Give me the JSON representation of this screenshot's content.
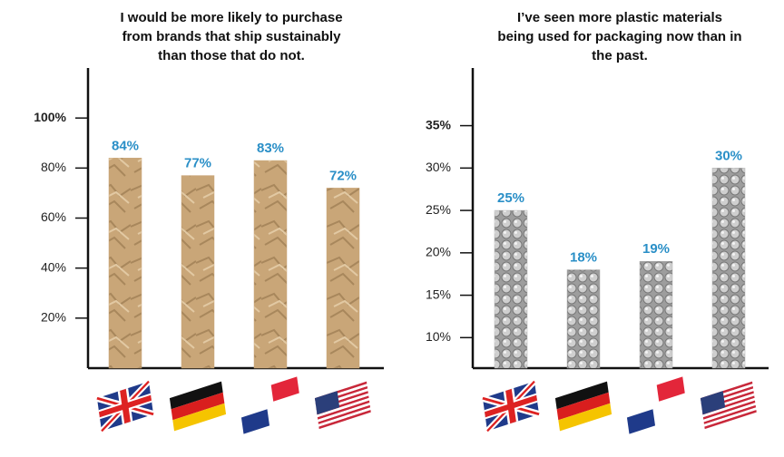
{
  "chart_data": [
    {
      "type": "bar",
      "title": [
        "I would be more likely to purchase",
        "from brands that ship sustainably",
        "than those that do not."
      ],
      "categories": [
        null,
        null,
        null,
        null
      ],
      "values": [
        84,
        77,
        83,
        72
      ],
      "value_labels": [
        "84%",
        "77%",
        "83%",
        "72%"
      ],
      "color": "#c9a678",
      "ylim": [
        0,
        120
      ],
      "yticks": [
        {
          "value": 20,
          "label": "20%"
        },
        {
          "value": 40,
          "label": "40%"
        },
        {
          "value": 60,
          "label": "60%"
        },
        {
          "value": 80,
          "label": "80%"
        },
        {
          "value": 100,
          "label": "100%"
        }
      ]
    },
    {
      "type": "bar",
      "title": [
        "I’ve seen more plastic materials",
        "being used for packaging now than in",
        "the past."
      ],
      "categories": [
        null,
        null,
        null,
        null
      ],
      "values": [
        25,
        18,
        19,
        30
      ],
      "value_labels": [
        "25%",
        "18%",
        "19%",
        "30%"
      ],
      "color": "#a9a9a9",
      "ylim": [
        6.4,
        41.8
      ],
      "yticks": [
        {
          "value": 10,
          "label": "10%"
        },
        {
          "value": 15,
          "label": "15%"
        },
        {
          "value": 20,
          "label": "20%"
        },
        {
          "value": 25,
          "label": "25%"
        },
        {
          "value": 30,
          "label": "30%"
        },
        {
          "value": 35,
          "label": "35%"
        }
      ]
    }
  ]
}
